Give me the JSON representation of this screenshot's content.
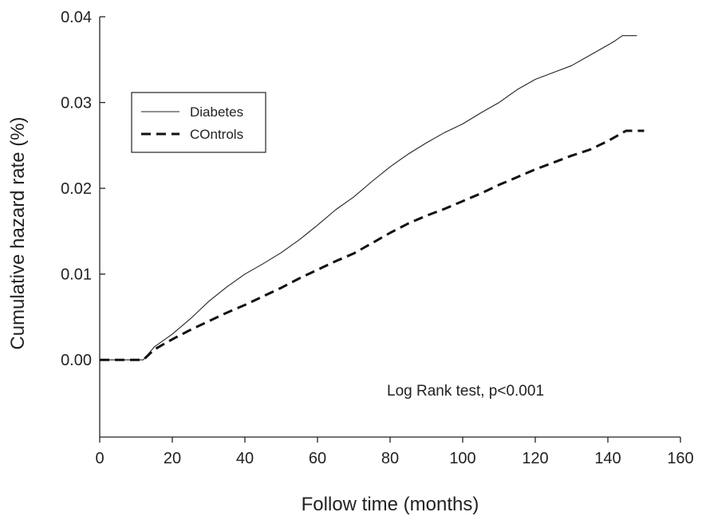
{
  "chart_data": {
    "type": "line",
    "title": "",
    "xlabel": "Follow time (months)",
    "ylabel": "Cumulative hazard rate (%)",
    "xlim": [
      0,
      160
    ],
    "ylim": [
      -0.009,
      0.04
    ],
    "xticks": [
      0,
      20,
      40,
      60,
      80,
      100,
      120,
      140,
      160
    ],
    "yticks": [
      0.0,
      0.01,
      0.02,
      0.03,
      0.04
    ],
    "xtick_labels": [
      "0",
      "20",
      "40",
      "60",
      "80",
      "100",
      "120",
      "140",
      "160"
    ],
    "ytick_labels": [
      "0.00",
      "0.01",
      "0.02",
      "0.03",
      "0.04"
    ],
    "grid": false,
    "legend_position": "top-left",
    "annotation": "Log Rank test, p<0.001",
    "series": [
      {
        "name": "Diabetes",
        "style": "solid",
        "x": [
          0,
          12,
          13,
          15,
          20,
          25,
          30,
          35,
          40,
          45,
          50,
          55,
          60,
          65,
          70,
          75,
          80,
          85,
          90,
          95,
          100,
          105,
          110,
          115,
          120,
          125,
          130,
          135,
          140,
          142,
          144,
          148
        ],
        "y": [
          0,
          0,
          0.0005,
          0.0015,
          0.003,
          0.0048,
          0.0068,
          0.0085,
          0.01,
          0.0112,
          0.0125,
          0.014,
          0.0157,
          0.0175,
          0.019,
          0.0208,
          0.0225,
          0.024,
          0.0253,
          0.0265,
          0.0275,
          0.0288,
          0.03,
          0.0315,
          0.0327,
          0.0335,
          0.0343,
          0.0355,
          0.0367,
          0.0372,
          0.0378,
          0.0378
        ]
      },
      {
        "name": "COntrols",
        "style": "dashed",
        "x": [
          0,
          12,
          13,
          15,
          20,
          25,
          30,
          35,
          40,
          45,
          50,
          55,
          60,
          65,
          70,
          75,
          80,
          85,
          90,
          95,
          100,
          105,
          110,
          115,
          120,
          125,
          130,
          135,
          140,
          145,
          150
        ],
        "y": [
          0,
          0,
          0.0004,
          0.0012,
          0.0024,
          0.0035,
          0.0045,
          0.0055,
          0.0064,
          0.0074,
          0.0084,
          0.0095,
          0.0105,
          0.0115,
          0.0124,
          0.0136,
          0.0148,
          0.0159,
          0.0168,
          0.0176,
          0.0185,
          0.0194,
          0.0204,
          0.0213,
          0.0222,
          0.023,
          0.0238,
          0.0245,
          0.0255,
          0.0267,
          0.0267
        ]
      }
    ]
  }
}
